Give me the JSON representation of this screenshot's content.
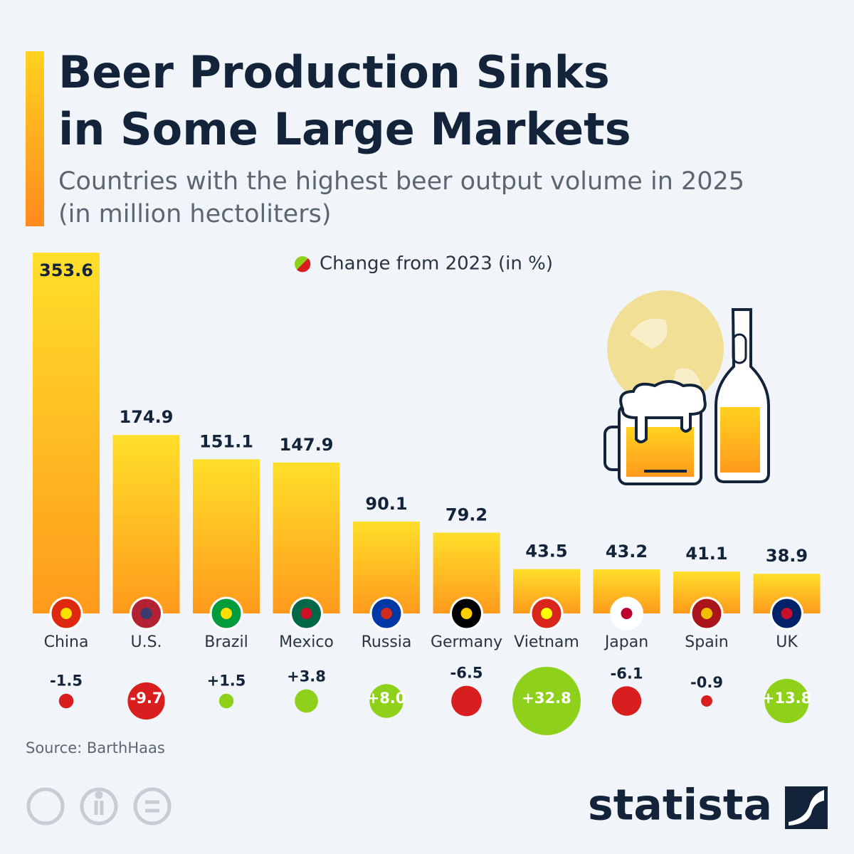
{
  "chart_data": {
    "type": "bar",
    "title": "Beer Production Sinks in Some Large Markets",
    "subtitle": "Countries with the highest beer output volume in 2025 (in million hectoliters)",
    "categories": [
      "China",
      "U.S.",
      "Brazil",
      "Mexico",
      "Russia",
      "Germany",
      "Vietnam",
      "Japan",
      "Spain",
      "UK"
    ],
    "series": [
      {
        "values": [
          353.6,
          174.9,
          151.1,
          147.9,
          90.1,
          79.2,
          43.5,
          43.2,
          41.1,
          38.9
        ]
      },
      {
        "name": "Change from 2023 (in %)",
        "values": [
          -1.5,
          -9.7,
          1.5,
          3.8,
          8.0,
          -6.5,
          32.8,
          -6.1,
          -0.9,
          13.8
        ],
        "value_labels": [
          "-1.5",
          "-9.7",
          "+1.5",
          "+3.8",
          "+8.0",
          "-6.5",
          "+32.8",
          "-6.1",
          "-0.9",
          "+13.8"
        ],
        "colors": {
          "positive": "#8fd11a",
          "negative": "#d81e1e"
        }
      }
    ],
    "source": "Source: BarthHaas",
    "brand": "statista"
  }
}
